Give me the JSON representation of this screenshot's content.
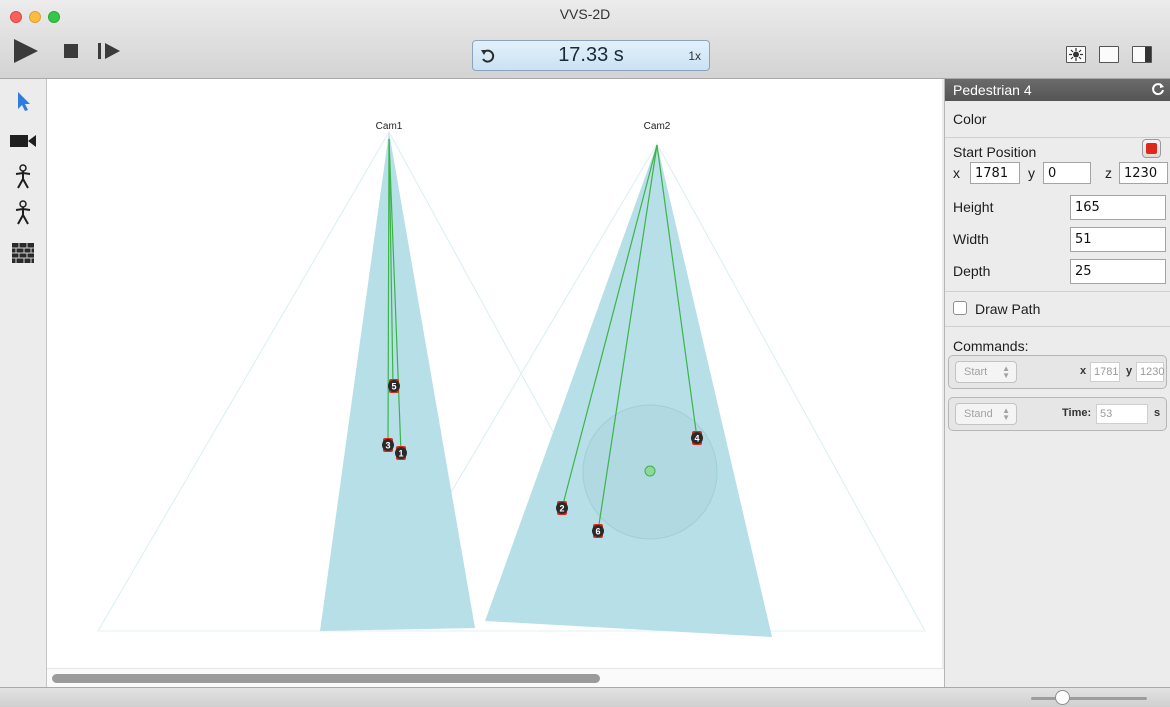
{
  "window": {
    "title": "VVS-2D"
  },
  "toolbar": {
    "time_display": "17.33 s",
    "speed": "1x",
    "icons": {
      "play": "play-icon",
      "stop": "stop-icon",
      "step": "step-forward-icon",
      "reset": "reset-time-icon"
    }
  },
  "tools": [
    "select-arrow-icon",
    "camera-icon",
    "pedestrian-icon",
    "pedestrian-icon",
    "wall-icon"
  ],
  "canvas": {
    "cameras": [
      {
        "label": "Cam1"
      },
      {
        "label": "Cam2"
      }
    ],
    "pedestrians": [
      {
        "id": "1"
      },
      {
        "id": "2"
      },
      {
        "id": "3"
      },
      {
        "id": "4"
      },
      {
        "id": "5"
      },
      {
        "id": "6"
      }
    ],
    "colors": {
      "fov": "#b7dfe8",
      "ray": "#3db349",
      "pedestrian_marker": "#e0271b",
      "pedestrian_body": "#2a2a2a"
    }
  },
  "inspector": {
    "title": "Pedestrian 4",
    "color_label": "Color",
    "color_value": "#e0271b",
    "start_position_label": "Start Position",
    "x_label": "x",
    "y_label": "y",
    "z_label": "z",
    "start_x": "1781",
    "start_y": "0",
    "start_z": "1230",
    "height_label": "Height",
    "height_value": "165",
    "width_label": "Width",
    "width_value": "51",
    "depth_label": "Depth",
    "depth_value": "25",
    "draw_path_label": "Draw Path",
    "draw_path_checked": false,
    "commands_label": "Commands:",
    "commands": [
      {
        "type": "Start",
        "x_label": "x",
        "x": "1781",
        "y_label": "y",
        "y": "1230"
      },
      {
        "type": "Stand",
        "time_label": "Time:",
        "time": "53",
        "unit": "s"
      }
    ]
  },
  "statusbar": {
    "zoom_level": 0.27
  }
}
